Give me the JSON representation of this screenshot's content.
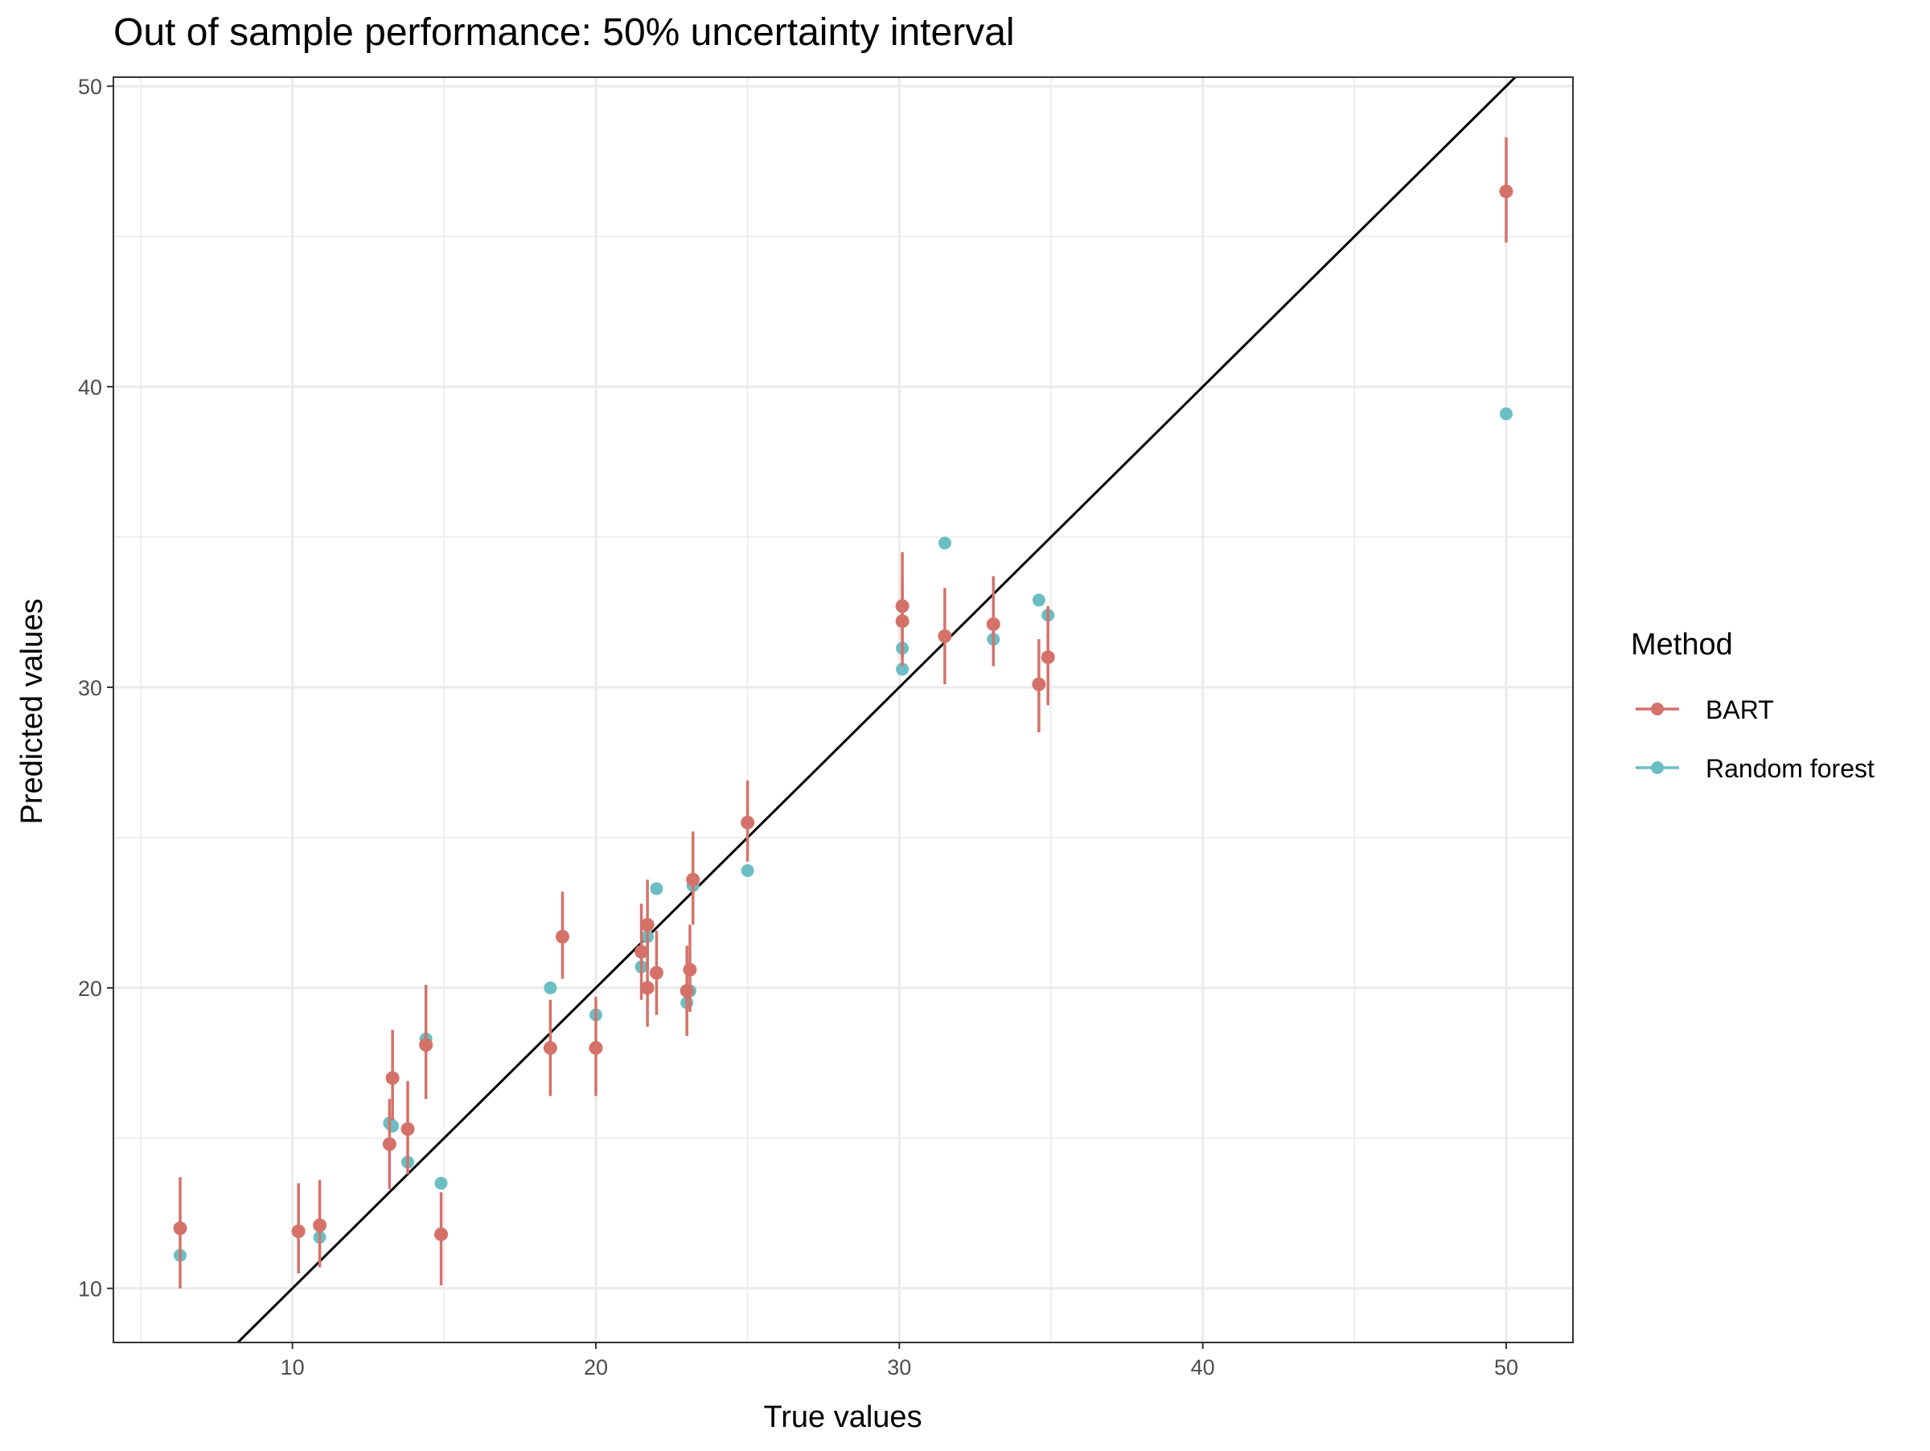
{
  "colors": {
    "bart": "#D4726A",
    "rf": "#6BBEC4",
    "identity_line": "#000000",
    "grid": "#EBEBEB",
    "panel_border": "#333333"
  },
  "chart_data": {
    "type": "scatter",
    "title": "Out of sample performance: 50% uncertainty interval",
    "xlabel": "True values",
    "ylabel": "Predicted values",
    "xlim": [
      4.1,
      52.2
    ],
    "ylim": [
      8.2,
      50.3
    ],
    "x_ticks": [
      10,
      20,
      30,
      40,
      50
    ],
    "y_ticks": [
      10,
      20,
      30,
      40,
      50
    ],
    "x_tick_labels": [
      "10",
      "20",
      "30",
      "40",
      "50"
    ],
    "y_tick_labels": [
      "10",
      "20",
      "30",
      "40",
      "50"
    ],
    "grid": true,
    "reference_line": "y = x",
    "legend": {
      "title": "Method",
      "position": "right",
      "entries": [
        "BART",
        "Random forest"
      ]
    },
    "series": [
      {
        "name": "BART",
        "color": "#D4726A",
        "points": [
          {
            "x": 6.3,
            "y": 12.0,
            "lo": 10.0,
            "hi": 13.7
          },
          {
            "x": 10.2,
            "y": 11.9,
            "lo": 10.5,
            "hi": 13.5
          },
          {
            "x": 10.9,
            "y": 12.1,
            "lo": 10.7,
            "hi": 13.6
          },
          {
            "x": 13.2,
            "y": 14.8,
            "lo": 13.3,
            "hi": 16.3
          },
          {
            "x": 13.3,
            "y": 17.0,
            "lo": 15.6,
            "hi": 18.6
          },
          {
            "x": 13.8,
            "y": 15.3,
            "lo": 13.8,
            "hi": 16.9
          },
          {
            "x": 14.4,
            "y": 18.1,
            "lo": 16.3,
            "hi": 20.1
          },
          {
            "x": 14.9,
            "y": 11.8,
            "lo": 10.1,
            "hi": 13.2
          },
          {
            "x": 18.5,
            "y": 18.0,
            "lo": 16.4,
            "hi": 19.6
          },
          {
            "x": 18.9,
            "y": 21.7,
            "lo": 20.3,
            "hi": 23.2
          },
          {
            "x": 20.0,
            "y": 18.0,
            "lo": 16.4,
            "hi": 19.7
          },
          {
            "x": 21.5,
            "y": 21.2,
            "lo": 19.6,
            "hi": 22.8
          },
          {
            "x": 21.7,
            "y": 20.0,
            "lo": 18.7,
            "hi": 21.7
          },
          {
            "x": 21.7,
            "y": 22.1,
            "lo": 20.6,
            "hi": 23.6
          },
          {
            "x": 22.0,
            "y": 20.5,
            "lo": 19.1,
            "hi": 21.9
          },
          {
            "x": 23.0,
            "y": 19.9,
            "lo": 18.4,
            "hi": 21.4
          },
          {
            "x": 23.1,
            "y": 20.6,
            "lo": 19.2,
            "hi": 22.1
          },
          {
            "x": 23.2,
            "y": 23.6,
            "lo": 22.1,
            "hi": 25.2
          },
          {
            "x": 25.0,
            "y": 25.5,
            "lo": 24.2,
            "hi": 26.9
          },
          {
            "x": 30.1,
            "y": 32.2,
            "lo": 30.7,
            "hi": 33.6
          },
          {
            "x": 30.1,
            "y": 32.7,
            "lo": 31.0,
            "hi": 34.5
          },
          {
            "x": 31.5,
            "y": 31.7,
            "lo": 30.1,
            "hi": 33.3
          },
          {
            "x": 33.1,
            "y": 32.1,
            "lo": 30.7,
            "hi": 33.7
          },
          {
            "x": 34.6,
            "y": 30.1,
            "lo": 28.5,
            "hi": 31.6
          },
          {
            "x": 34.9,
            "y": 31.0,
            "lo": 29.4,
            "hi": 32.7
          },
          {
            "x": 50.0,
            "y": 46.5,
            "lo": 44.8,
            "hi": 48.3
          }
        ]
      },
      {
        "name": "Random forest",
        "color": "#6BBEC4",
        "points": [
          {
            "x": 6.3,
            "y": 11.1
          },
          {
            "x": 10.9,
            "y": 11.7
          },
          {
            "x": 13.2,
            "y": 15.5
          },
          {
            "x": 13.3,
            "y": 15.4
          },
          {
            "x": 13.8,
            "y": 14.2
          },
          {
            "x": 14.4,
            "y": 18.3
          },
          {
            "x": 14.9,
            "y": 13.5
          },
          {
            "x": 18.5,
            "y": 20.0
          },
          {
            "x": 20.0,
            "y": 19.1
          },
          {
            "x": 21.5,
            "y": 20.7
          },
          {
            "x": 21.7,
            "y": 21.7
          },
          {
            "x": 22.0,
            "y": 23.3
          },
          {
            "x": 23.0,
            "y": 19.5
          },
          {
            "x": 23.1,
            "y": 19.9
          },
          {
            "x": 23.2,
            "y": 23.4
          },
          {
            "x": 25.0,
            "y": 23.9
          },
          {
            "x": 30.1,
            "y": 30.6
          },
          {
            "x": 30.1,
            "y": 31.3
          },
          {
            "x": 31.5,
            "y": 34.8
          },
          {
            "x": 33.1,
            "y": 31.6
          },
          {
            "x": 34.6,
            "y": 32.9
          },
          {
            "x": 34.9,
            "y": 32.4
          },
          {
            "x": 50.0,
            "y": 39.1
          }
        ]
      }
    ]
  }
}
